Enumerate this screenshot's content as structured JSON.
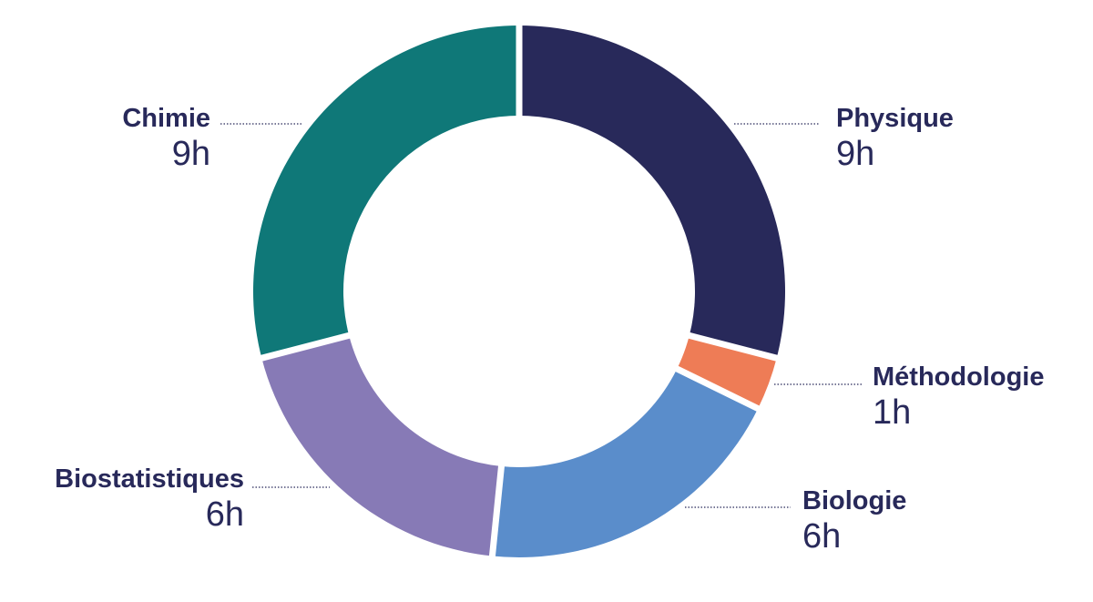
{
  "chart_data": {
    "type": "pie",
    "unit": "h",
    "slices": [
      {
        "label": "Physique",
        "value": 9,
        "display": "9h",
        "color": "#28295a"
      },
      {
        "label": "Méthodologie",
        "value": 1,
        "display": "1h",
        "color": "#ee7c56"
      },
      {
        "label": "Biologie",
        "value": 6,
        "display": "6h",
        "color": "#5a8dcb"
      },
      {
        "label": "Biostatistiques",
        "value": 6,
        "display": "6h",
        "color": "#877ab6"
      },
      {
        "label": "Chimie",
        "value": 9,
        "display": "9h",
        "color": "#0f7878"
      }
    ],
    "text_color": "#28295a",
    "leader_color": "#28295a"
  }
}
